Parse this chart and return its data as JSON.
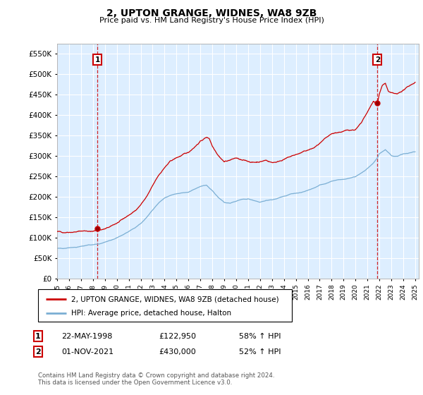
{
  "title": "2, UPTON GRANGE, WIDNES, WA8 9ZB",
  "subtitle": "Price paid vs. HM Land Registry's House Price Index (HPI)",
  "legend_line1": "2, UPTON GRANGE, WIDNES, WA8 9ZB (detached house)",
  "legend_line2": "HPI: Average price, detached house, Halton",
  "transaction1_label": "1",
  "transaction1_date": "22-MAY-1998",
  "transaction1_price": "£122,950",
  "transaction1_hpi": "58% ↑ HPI",
  "transaction2_label": "2",
  "transaction2_date": "01-NOV-2021",
  "transaction2_price": "£430,000",
  "transaction2_hpi": "52% ↑ HPI",
  "copyright": "Contains HM Land Registry data © Crown copyright and database right 2024.\nThis data is licensed under the Open Government Licence v3.0.",
  "red_color": "#cc0000",
  "blue_color": "#7bafd4",
  "grid_color": "#ccddee",
  "bg_color": "#ddeeff",
  "ylim_min": 0,
  "ylim_max": 575000,
  "transaction1_year": 1998.38,
  "transaction1_value": 122950,
  "transaction2_year": 2021.83,
  "transaction2_value": 430000
}
